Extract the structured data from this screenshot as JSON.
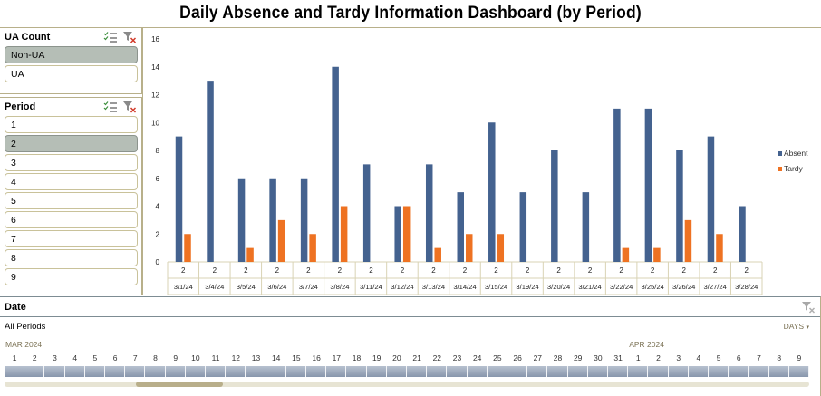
{
  "title": "Daily Absence and Tardy Information Dashboard (by Period)",
  "ua_slicer": {
    "header": "UA Count",
    "items": [
      {
        "label": "Non-UA",
        "selected": true
      },
      {
        "label": "UA",
        "selected": false
      }
    ]
  },
  "period_slicer": {
    "header": "Period",
    "items": [
      {
        "label": "1",
        "selected": false
      },
      {
        "label": "2",
        "selected": true
      },
      {
        "label": "3",
        "selected": false
      },
      {
        "label": "4",
        "selected": false
      },
      {
        "label": "5",
        "selected": false
      },
      {
        "label": "6",
        "selected": false
      },
      {
        "label": "7",
        "selected": false
      },
      {
        "label": "8",
        "selected": false
      },
      {
        "label": "9",
        "selected": false
      }
    ]
  },
  "chart_data": {
    "type": "bar",
    "title": "",
    "xlabel": "",
    "ylabel": "",
    "ylim": [
      0,
      16
    ],
    "yticks": [
      0,
      2,
      4,
      6,
      8,
      10,
      12,
      14,
      16
    ],
    "grid": false,
    "legend_position": "right",
    "outer_categories": [
      "2",
      "2",
      "2",
      "2",
      "2",
      "2",
      "2",
      "2",
      "2",
      "2",
      "2",
      "2",
      "2",
      "2",
      "2",
      "2",
      "2",
      "2",
      "2"
    ],
    "categories": [
      "3/1/24",
      "3/4/24",
      "3/5/24",
      "3/6/24",
      "3/7/24",
      "3/8/24",
      "3/11/24",
      "3/12/24",
      "3/13/24",
      "3/14/24",
      "3/15/24",
      "3/19/24",
      "3/20/24",
      "3/21/24",
      "3/22/24",
      "3/25/24",
      "3/26/24",
      "3/27/24",
      "3/28/24"
    ],
    "series": [
      {
        "name": "Absent",
        "color": "#44628f",
        "values": [
          9,
          13,
          6,
          6,
          6,
          14,
          7,
          4,
          7,
          5,
          10,
          5,
          8,
          5,
          11,
          11,
          8,
          9,
          4
        ]
      },
      {
        "name": "Tardy",
        "color": "#ee7222",
        "values": [
          2,
          null,
          1,
          3,
          2,
          4,
          null,
          4,
          1,
          2,
          2,
          null,
          null,
          null,
          1,
          1,
          3,
          2,
          null
        ]
      }
    ]
  },
  "timeline": {
    "header": "Date",
    "current_selection": "All Periods",
    "level": "DAYS",
    "months": [
      {
        "label": "MAR 2024",
        "start_index": 0
      },
      {
        "label": "APR 2024",
        "start_index": 31
      }
    ],
    "days": [
      "1",
      "2",
      "3",
      "4",
      "5",
      "6",
      "7",
      "8",
      "9",
      "10",
      "11",
      "12",
      "13",
      "14",
      "15",
      "16",
      "17",
      "18",
      "19",
      "20",
      "21",
      "22",
      "23",
      "24",
      "25",
      "26",
      "27",
      "28",
      "29",
      "30",
      "31",
      "1",
      "2",
      "3",
      "4",
      "5",
      "6",
      "7",
      "8",
      "9"
    ]
  },
  "icons": {
    "multi_select": "multi-select-icon",
    "clear_filter": "clear-filter-icon",
    "dropdown": "chevron-down-icon"
  }
}
